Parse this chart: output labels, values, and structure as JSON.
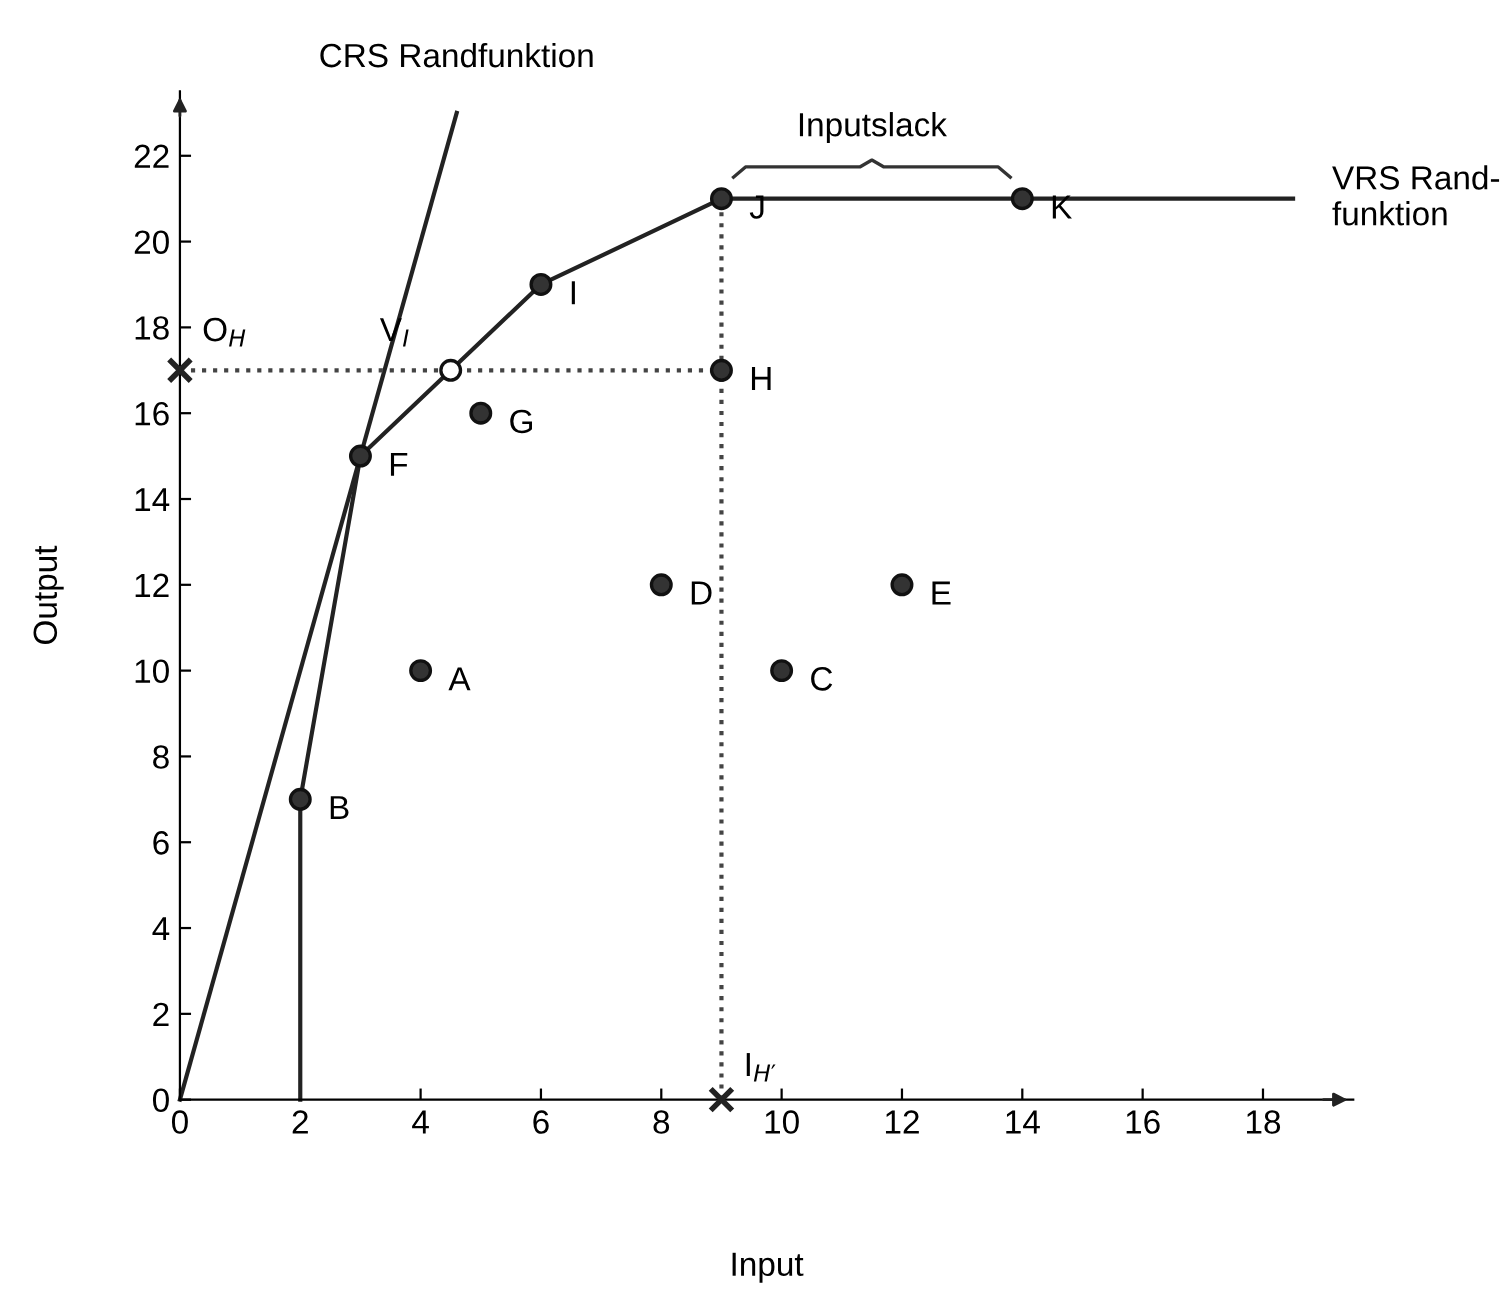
{
  "chart_data": {
    "type": "scatter",
    "xlabel": "Input",
    "ylabel": "Output",
    "xlim": [
      0,
      19.5
    ],
    "ylim": [
      0,
      23.5
    ],
    "xticks": [
      0,
      2,
      4,
      6,
      8,
      10,
      12,
      14,
      16,
      18
    ],
    "yticks": [
      0,
      2,
      4,
      6,
      8,
      10,
      12,
      14,
      16,
      18,
      20,
      22
    ],
    "grid": false,
    "legend": false,
    "series": [
      {
        "type": "line",
        "color": "#222222",
        "line_style": "solid",
        "marker": "none",
        "x": [
          0,
          4.6
        ],
        "values": [
          0,
          23
        ]
      },
      {
        "type": "line",
        "color": "#222222",
        "line_style": "solid",
        "marker": "none",
        "x": [
          2,
          2,
          3,
          6,
          9,
          14,
          18.5
        ],
        "values": [
          0,
          7,
          15,
          19,
          21,
          21,
          21
        ]
      },
      {
        "type": "line",
        "color": "#444444",
        "line_style": "dotted",
        "marker": "none",
        "x": [
          0,
          9
        ],
        "values": [
          17,
          17
        ]
      },
      {
        "type": "line",
        "color": "#444444",
        "line_style": "dotted",
        "marker": "none",
        "x": [
          9,
          9
        ],
        "values": [
          0,
          21
        ]
      },
      {
        "color": "#333333",
        "marker": "circle",
        "x": [
          4,
          2,
          10,
          8,
          12,
          3,
          5,
          9,
          6,
          9,
          14
        ],
        "values": [
          10,
          7,
          10,
          12,
          12,
          15,
          16,
          17,
          19,
          21,
          21
        ]
      },
      {
        "color": "#ffffff",
        "marker": "circle",
        "x": [
          4.5
        ],
        "values": [
          17
        ]
      },
      {
        "color": "#222222",
        "marker": "cross",
        "x": [
          0,
          9
        ],
        "values": [
          17,
          0
        ]
      }
    ],
    "annotations": [
      {
        "text": "A",
        "x": 4,
        "y": 10
      },
      {
        "text": "B",
        "x": 2,
        "y": 7
      },
      {
        "text": "C",
        "x": 10,
        "y": 10
      },
      {
        "text": "D",
        "x": 8,
        "y": 12
      },
      {
        "text": "E",
        "x": 12,
        "y": 12
      },
      {
        "text": "F",
        "x": 3,
        "y": 15
      },
      {
        "text": "G",
        "x": 5,
        "y": 16
      },
      {
        "text": "H",
        "x": 9,
        "y": 17
      },
      {
        "text": "I",
        "x": 6,
        "y": 19
      },
      {
        "text": "J",
        "x": 9,
        "y": 21
      },
      {
        "text": "K",
        "x": 14,
        "y": 21
      },
      {
        "text": "V$_{I}$",
        "x": 4.5,
        "y": 17
      },
      {
        "text": "O$_{H}$",
        "x": 0,
        "y": 17
      },
      {
        "text": "I$_{H′}$",
        "x": 9,
        "y": 0
      },
      {
        "text": "CRS Randfunktion",
        "x": 4.6,
        "y": 23
      },
      {
        "text": "VRS Rand-\nfunktion",
        "x": 18.5,
        "y": 21
      },
      {
        "text": "Inputslack",
        "x": 11.5,
        "y": 21
      }
    ]
  }
}
